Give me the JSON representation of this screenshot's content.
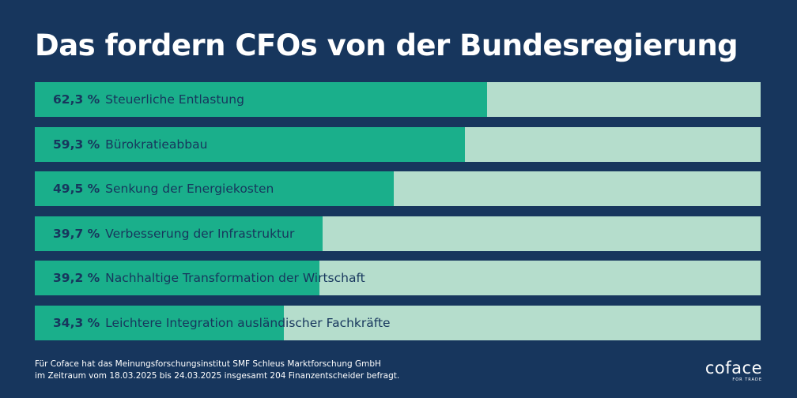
{
  "title": "Das fordern CFOs von der Bundesregierung",
  "chart_data": {
    "type": "bar",
    "orientation": "horizontal",
    "xlim": [
      0,
      100
    ],
    "unit": "%",
    "categories": [
      "Steuerliche Entlastung",
      "Bürokratieabbau",
      "Senkung der Energiekosten",
      "Verbesserung der Infrastruktur",
      "Nachhaltige Transformation der Wirtschaft",
      "Leichtere Integration ausländischer Fachkräfte"
    ],
    "values": [
      62.3,
      59.3,
      49.5,
      39.7,
      39.2,
      34.3
    ],
    "value_labels": [
      "62,3 %",
      "59,3 %",
      "49,5 %",
      "39,7 %",
      "39,2 %",
      "34,3 %"
    ],
    "colors": {
      "fill": "#1aaf8b",
      "track": "#b5ddcc",
      "label": "#17365d"
    }
  },
  "footnote": {
    "line1": "Für Coface hat das Meinungsforschungsinstitut SMF Schleus Marktforschung GmbH",
    "line2": "im Zeitraum vom 18.03.2025 bis 24.03.2025 insgesamt 204 Finanzentscheider befragt."
  },
  "logo": {
    "word": "coface",
    "tagline": "FOR TRADE"
  },
  "colors": {
    "background": "#17365d",
    "text": "#ffffff"
  }
}
